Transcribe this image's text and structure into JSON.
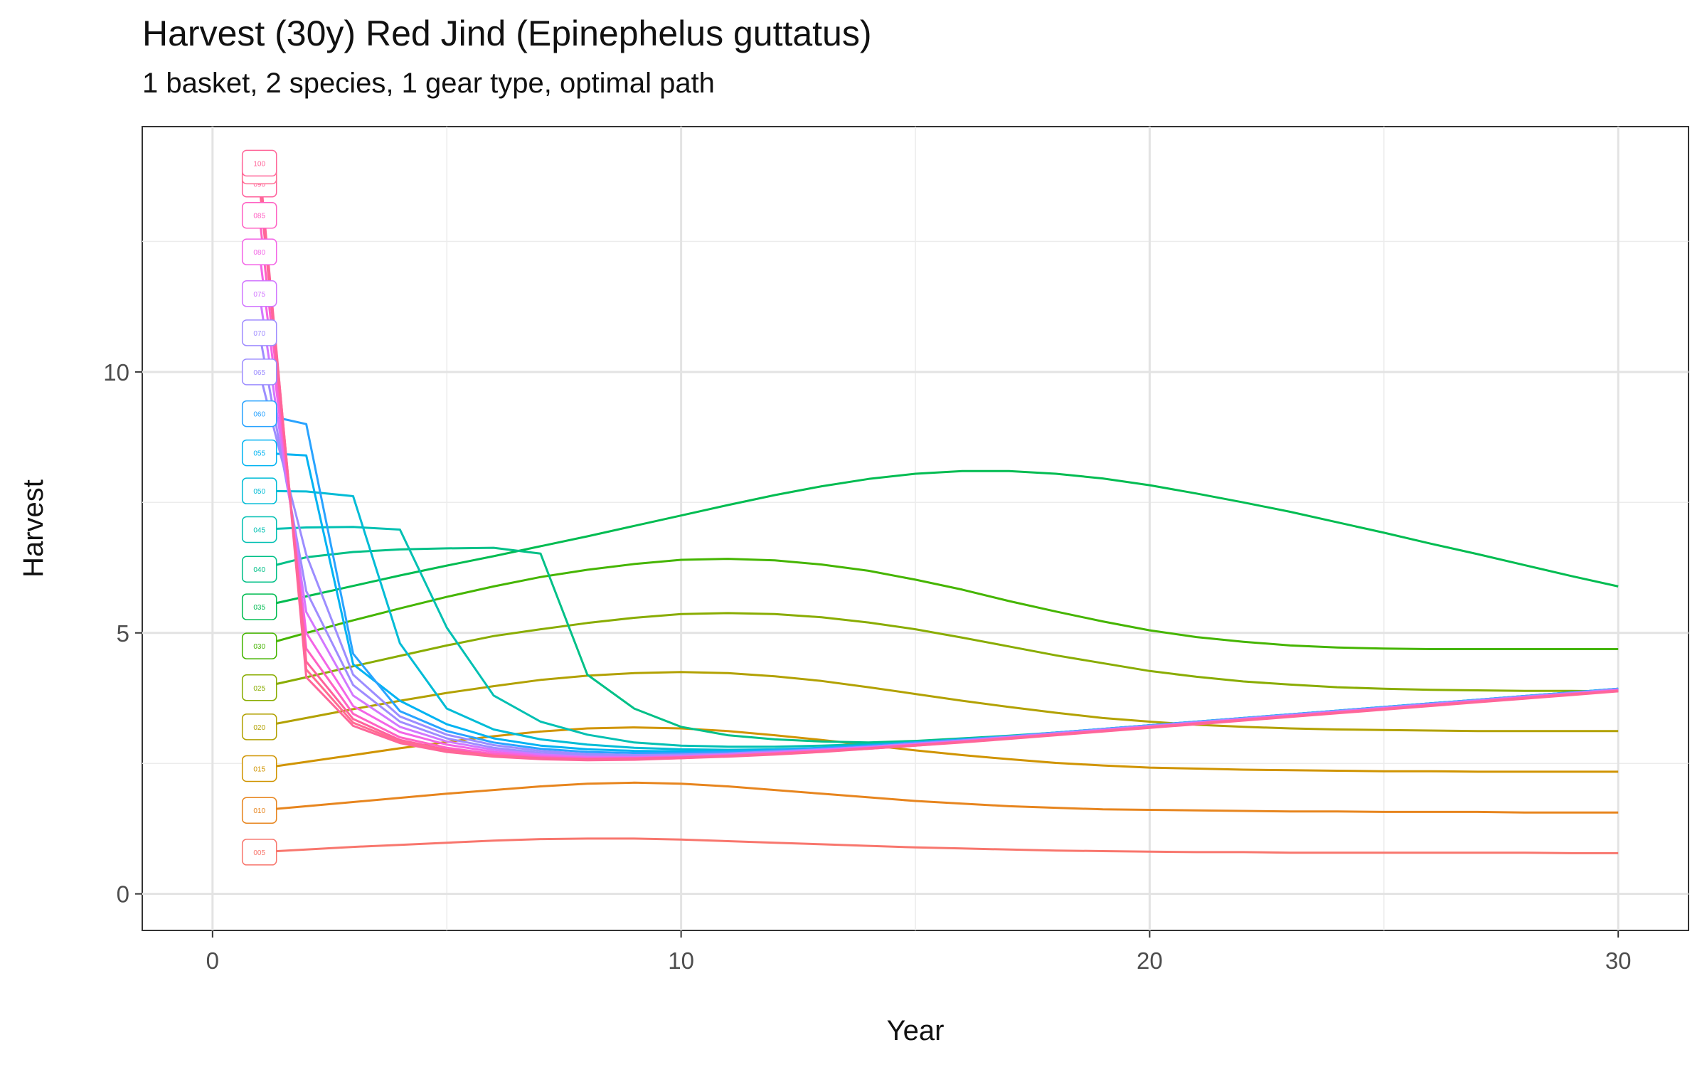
{
  "chart_data": {
    "type": "line",
    "title": "Harvest (30y) Red Jind (Epinephelus guttatus)",
    "subtitle": "1 basket, 2 species, 1 gear type, optimal path",
    "xlabel": "Year",
    "ylabel": "Harvest",
    "xlim": [
      -1.5,
      31.5
    ],
    "ylim": [
      -0.7,
      14.7
    ],
    "x_ticks": [
      0,
      10,
      20,
      30
    ],
    "y_ticks": [
      0,
      5,
      10
    ],
    "grid": true,
    "legend": "none",
    "x": [
      1,
      2,
      3,
      4,
      5,
      6,
      7,
      8,
      9,
      10,
      11,
      12,
      13,
      14,
      15,
      16,
      17,
      18,
      19,
      20,
      21,
      22,
      23,
      24,
      25,
      26,
      27,
      28,
      29,
      30
    ],
    "series": [
      {
        "name": "005",
        "color": "#F8766D",
        "values": [
          0.8,
          0.85,
          0.9,
          0.94,
          0.98,
          1.02,
          1.05,
          1.06,
          1.06,
          1.04,
          1.01,
          0.98,
          0.95,
          0.92,
          0.89,
          0.87,
          0.85,
          0.83,
          0.82,
          0.81,
          0.8,
          0.8,
          0.79,
          0.79,
          0.79,
          0.79,
          0.79,
          0.79,
          0.78,
          0.78
        ]
      },
      {
        "name": "010",
        "color": "#E7851E",
        "values": [
          1.6,
          1.68,
          1.76,
          1.84,
          1.92,
          1.99,
          2.06,
          2.11,
          2.13,
          2.11,
          2.06,
          1.99,
          1.92,
          1.85,
          1.78,
          1.73,
          1.68,
          1.65,
          1.62,
          1.61,
          1.6,
          1.59,
          1.58,
          1.58,
          1.57,
          1.57,
          1.57,
          1.56,
          1.56,
          1.56
        ]
      },
      {
        "name": "015",
        "color": "#D09400",
        "values": [
          2.4,
          2.53,
          2.66,
          2.79,
          2.91,
          3.02,
          3.11,
          3.17,
          3.19,
          3.17,
          3.12,
          3.04,
          2.95,
          2.85,
          2.75,
          2.66,
          2.58,
          2.51,
          2.46,
          2.42,
          2.4,
          2.38,
          2.37,
          2.36,
          2.35,
          2.35,
          2.34,
          2.34,
          2.34,
          2.34
        ]
      },
      {
        "name": "020",
        "color": "#B2A100",
        "values": [
          3.2,
          3.37,
          3.54,
          3.7,
          3.85,
          3.98,
          4.1,
          4.18,
          4.23,
          4.25,
          4.23,
          4.17,
          4.08,
          3.96,
          3.83,
          3.7,
          3.58,
          3.47,
          3.37,
          3.3,
          3.24,
          3.2,
          3.17,
          3.15,
          3.14,
          3.13,
          3.12,
          3.12,
          3.12,
          3.12
        ]
      },
      {
        "name": "025",
        "color": "#89AC00",
        "values": [
          3.95,
          4.15,
          4.36,
          4.56,
          4.76,
          4.94,
          5.07,
          5.19,
          5.29,
          5.36,
          5.38,
          5.36,
          5.3,
          5.2,
          5.07,
          4.91,
          4.74,
          4.57,
          4.42,
          4.27,
          4.16,
          4.07,
          4.01,
          3.96,
          3.93,
          3.91,
          3.9,
          3.89,
          3.89,
          3.88
        ]
      },
      {
        "name": "030",
        "color": "#45B500",
        "values": [
          4.75,
          5.0,
          5.24,
          5.47,
          5.69,
          5.89,
          6.07,
          6.21,
          6.32,
          6.4,
          6.42,
          6.39,
          6.31,
          6.19,
          6.02,
          5.83,
          5.61,
          5.41,
          5.22,
          5.05,
          4.92,
          4.83,
          4.76,
          4.72,
          4.7,
          4.69,
          4.69,
          4.69,
          4.69,
          4.69
        ]
      },
      {
        "name": "035",
        "color": "#00BC51",
        "values": [
          5.5,
          5.7,
          5.9,
          6.1,
          6.29,
          6.47,
          6.66,
          6.85,
          7.05,
          7.25,
          7.45,
          7.64,
          7.81,
          7.95,
          8.05,
          8.1,
          8.1,
          8.05,
          7.96,
          7.83,
          7.67,
          7.5,
          7.32,
          7.12,
          6.92,
          6.71,
          6.51,
          6.3,
          6.09,
          5.89
        ]
      },
      {
        "name": "040",
        "color": "#00C087",
        "values": [
          6.22,
          6.45,
          6.55,
          6.6,
          6.62,
          6.63,
          6.52,
          4.2,
          3.55,
          3.2,
          3.04,
          2.96,
          2.92,
          2.9,
          2.93,
          2.98,
          3.03,
          3.09,
          3.16,
          3.23,
          3.3,
          3.37,
          3.44,
          3.51,
          3.58,
          3.65,
          3.72,
          3.79,
          3.86,
          3.93
        ]
      },
      {
        "name": "045",
        "color": "#00C0B2",
        "values": [
          6.98,
          7.02,
          7.03,
          6.98,
          5.1,
          3.8,
          3.3,
          3.05,
          2.9,
          2.84,
          2.82,
          2.82,
          2.84,
          2.87,
          2.91,
          2.96,
          3.02,
          3.08,
          3.15,
          3.22,
          3.29,
          3.36,
          3.43,
          3.5,
          3.57,
          3.64,
          3.71,
          3.78,
          3.85,
          3.92
        ]
      },
      {
        "name": "050",
        "color": "#00BCD6",
        "values": [
          7.72,
          7.71,
          7.62,
          4.8,
          3.55,
          3.15,
          2.96,
          2.86,
          2.8,
          2.77,
          2.76,
          2.77,
          2.8,
          2.84,
          2.89,
          2.94,
          3.0,
          3.07,
          3.14,
          3.21,
          3.28,
          3.35,
          3.42,
          3.49,
          3.56,
          3.63,
          3.7,
          3.77,
          3.84,
          3.91
        ]
      },
      {
        "name": "055",
        "color": "#00B3F2",
        "values": [
          8.45,
          8.4,
          4.4,
          3.7,
          3.25,
          2.98,
          2.84,
          2.77,
          2.74,
          2.73,
          2.74,
          2.76,
          2.8,
          2.85,
          2.9,
          2.96,
          3.02,
          3.09,
          3.16,
          3.23,
          3.3,
          3.37,
          3.44,
          3.51,
          3.58,
          3.65,
          3.72,
          3.79,
          3.86,
          3.93
        ]
      },
      {
        "name": "060",
        "color": "#29A3FF",
        "values": [
          9.2,
          9.0,
          4.6,
          3.5,
          3.12,
          2.9,
          2.78,
          2.72,
          2.7,
          2.7,
          2.72,
          2.75,
          2.79,
          2.84,
          2.9,
          2.96,
          3.02,
          3.09,
          3.16,
          3.23,
          3.3,
          3.37,
          3.44,
          3.51,
          3.58,
          3.65,
          3.72,
          3.79,
          3.86,
          3.93
        ]
      },
      {
        "name": "065",
        "color": "#9C8DFF",
        "values": [
          10.0,
          6.5,
          4.2,
          3.4,
          3.05,
          2.85,
          2.74,
          2.68,
          2.66,
          2.67,
          2.69,
          2.73,
          2.77,
          2.82,
          2.88,
          2.94,
          3.01,
          3.08,
          3.15,
          3.22,
          3.29,
          3.36,
          3.43,
          3.5,
          3.57,
          3.64,
          3.71,
          3.78,
          3.85,
          3.92
        ]
      },
      {
        "name": "070",
        "color": "#9F8CFF",
        "values": [
          10.75,
          5.8,
          4.0,
          3.3,
          2.98,
          2.8,
          2.7,
          2.65,
          2.64,
          2.65,
          2.68,
          2.72,
          2.77,
          2.82,
          2.88,
          2.94,
          3.01,
          3.08,
          3.15,
          3.22,
          3.29,
          3.36,
          3.43,
          3.5,
          3.57,
          3.64,
          3.71,
          3.78,
          3.85,
          3.92
        ]
      },
      {
        "name": "075",
        "color": "#D277FF",
        "values": [
          11.5,
          5.4,
          3.8,
          3.2,
          2.92,
          2.76,
          2.67,
          2.63,
          2.62,
          2.64,
          2.67,
          2.71,
          2.76,
          2.81,
          2.87,
          2.93,
          3.0,
          3.07,
          3.14,
          3.21,
          3.28,
          3.35,
          3.42,
          3.49,
          3.56,
          3.63,
          3.7,
          3.77,
          3.84,
          3.91
        ]
      },
      {
        "name": "080",
        "color": "#F365E6",
        "values": [
          12.3,
          5.0,
          3.6,
          3.1,
          2.86,
          2.72,
          2.64,
          2.61,
          2.61,
          2.63,
          2.66,
          2.7,
          2.75,
          2.8,
          2.86,
          2.92,
          2.99,
          3.06,
          3.13,
          3.2,
          3.27,
          3.34,
          3.41,
          3.48,
          3.55,
          3.62,
          3.69,
          3.76,
          3.83,
          3.9
        ]
      },
      {
        "name": "085",
        "color": "#FF61C3",
        "values": [
          13.0,
          4.7,
          3.45,
          3.0,
          2.8,
          2.68,
          2.62,
          2.59,
          2.6,
          2.62,
          2.65,
          2.69,
          2.74,
          2.79,
          2.85,
          2.92,
          2.99,
          3.06,
          3.13,
          3.2,
          3.27,
          3.34,
          3.41,
          3.48,
          3.55,
          3.62,
          3.69,
          3.76,
          3.83,
          3.9
        ]
      },
      {
        "name": "090",
        "color": "#FF619C",
        "values": [
          13.6,
          4.45,
          3.35,
          2.95,
          2.76,
          2.65,
          2.6,
          2.58,
          2.59,
          2.61,
          2.64,
          2.68,
          2.73,
          2.79,
          2.85,
          2.91,
          2.98,
          3.05,
          3.12,
          3.19,
          3.26,
          3.33,
          3.4,
          3.47,
          3.54,
          3.61,
          3.68,
          3.75,
          3.82,
          3.89
        ]
      },
      {
        "name": "095",
        "color": "#FF6C91",
        "values": [
          13.85,
          4.3,
          3.28,
          2.92,
          2.74,
          2.64,
          2.59,
          2.57,
          2.58,
          2.6,
          2.64,
          2.68,
          2.73,
          2.78,
          2.84,
          2.91,
          2.98,
          3.05,
          3.12,
          3.19,
          3.26,
          3.33,
          3.4,
          3.47,
          3.54,
          3.61,
          3.68,
          3.75,
          3.82,
          3.89
        ]
      },
      {
        "name": "100",
        "color": "#FF6699",
        "values": [
          14.0,
          4.15,
          3.22,
          2.89,
          2.72,
          2.63,
          2.58,
          2.56,
          2.57,
          2.6,
          2.63,
          2.67,
          2.72,
          2.78,
          2.84,
          2.9,
          2.97,
          3.04,
          3.11,
          3.18,
          3.25,
          3.32,
          3.39,
          3.46,
          3.53,
          3.6,
          3.67,
          3.74,
          3.81,
          3.88
        ]
      }
    ]
  }
}
